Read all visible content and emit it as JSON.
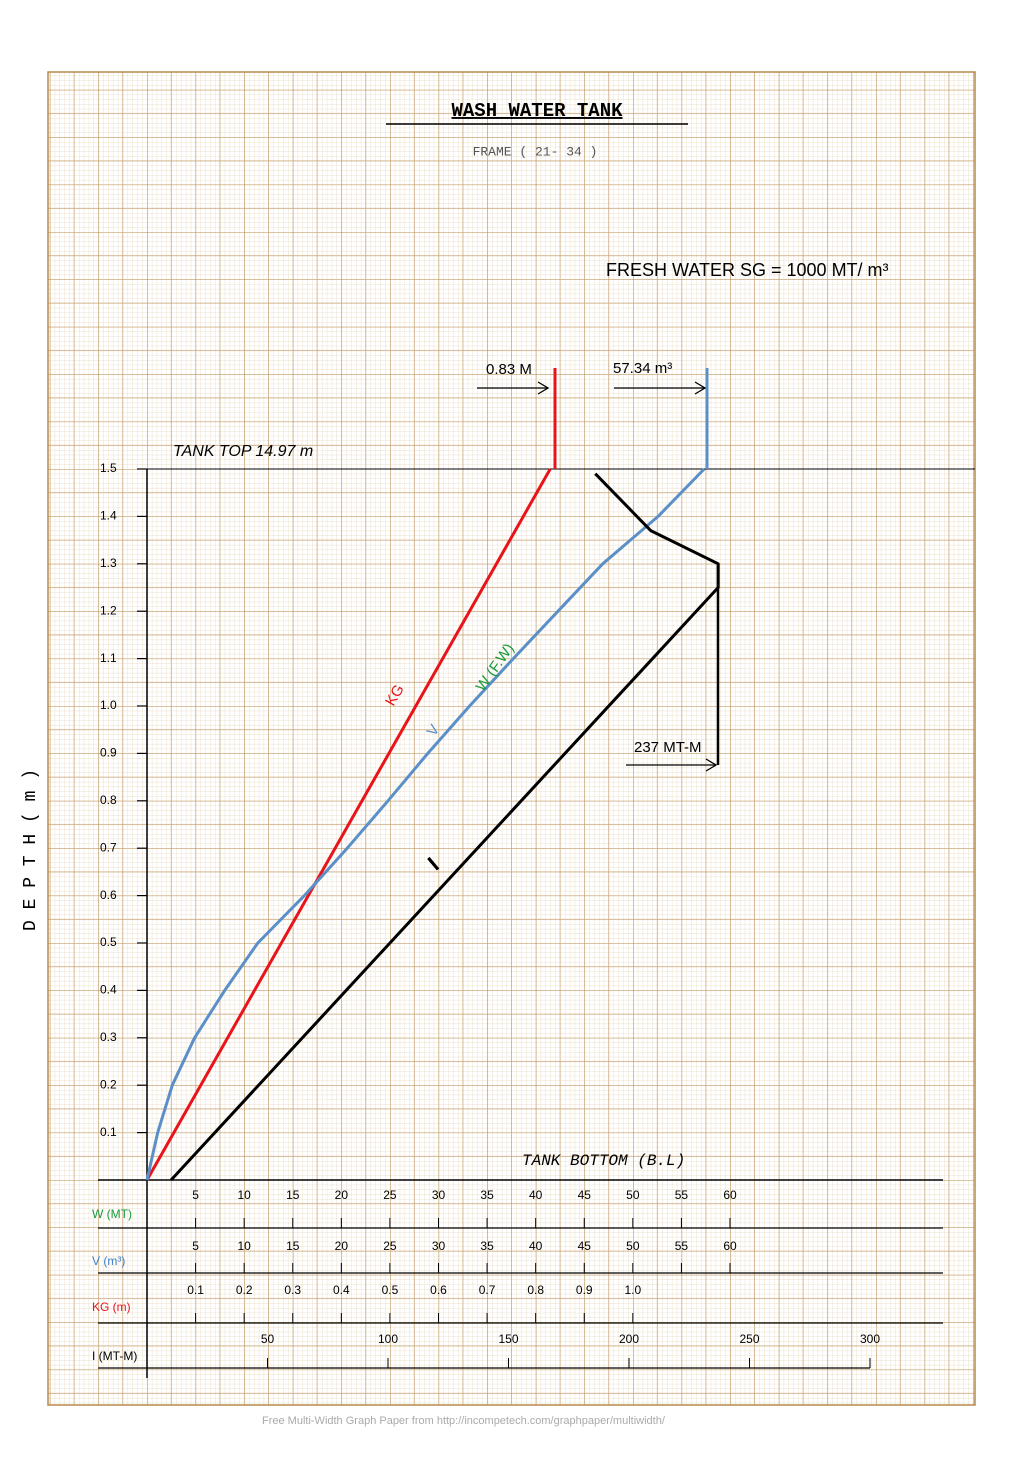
{
  "chart_data": {
    "type": "line",
    "title": "WASH    WATER    TANK",
    "subtitle": "FRAME ( 21-  34 )",
    "ylabel": "D E P T H ( m )",
    "ylim": [
      0,
      1.5
    ],
    "yticks": [
      0.1,
      0.2,
      0.3,
      0.4,
      0.5,
      0.6,
      0.7,
      0.8,
      0.9,
      {
        "value": 1,
        "label": "1.0"
      },
      1.1,
      1.2,
      1.3,
      1.4,
      1.5
    ],
    "axes": [
      {
        "name": "W (MT)",
        "color": "#1a9a3a",
        "xlim": [
          0,
          60
        ],
        "xticks": [
          5,
          10,
          15,
          20,
          25,
          30,
          35,
          40,
          45,
          50,
          55,
          60
        ]
      },
      {
        "name": "V (m³)",
        "color": "#3f7fc4",
        "xlim": [
          0,
          60
        ],
        "xticks": [
          5,
          10,
          15,
          20,
          25,
          30,
          35,
          40,
          45,
          50,
          55,
          60
        ]
      },
      {
        "name": "KG (m)",
        "color": "#e8141a",
        "xlim": [
          0,
          1.2
        ],
        "xticks": [
          0.1,
          0.2,
          0.3,
          0.4,
          0.5,
          0.6,
          0.7,
          0.8,
          0.9,
          {
            "value": 1,
            "label": "1.0"
          }
        ]
      },
      {
        "name": "I (MT-M)",
        "color": "#000000",
        "xlim": [
          0,
          300
        ],
        "xticks": [
          50,
          100,
          150,
          200,
          250,
          300
        ]
      }
    ],
    "series": [
      {
        "name": "KG",
        "color": "#e8141a",
        "axis": 2,
        "depth": [
          0,
          1.5
        ],
        "values": [
          0,
          0.83
        ]
      },
      {
        "name": "V",
        "color": "#5b8fc7",
        "axis": 1,
        "alias": "W (F.W)",
        "alias_color": "#1a9a3a",
        "depth": [
          0,
          0.1,
          0.2,
          0.3,
          0.4,
          0.5,
          0.6,
          0.7,
          0.8,
          0.9,
          1.0,
          1.1,
          1.2,
          1.3,
          1.4,
          1.5
        ],
        "values": [
          0,
          1.1,
          2.6,
          4.9,
          8.0,
          11.4,
          16.2,
          20.6,
          24.8,
          28.9,
          33.2,
          37.7,
          42.3,
          46.9,
          52.6,
          57.34
        ]
      },
      {
        "name": "I",
        "color": "#000000",
        "axis": 3,
        "depth": [
          0,
          1.25,
          1.3,
          1.37,
          1.49
        ],
        "values": [
          10,
          237,
          237,
          209,
          186
        ]
      }
    ],
    "annotations": [
      "TANK   TOP   14.97  m",
      "TANK    BOTTOM     (B.L)",
      "0.83 M",
      "57.34 m³",
      "237 MT-M",
      "FRESH WATER SG = 1000  MT/ m³"
    ]
  },
  "footer": "Free Multi-Width Graph Paper from http://incompetech.com/graphpaper/multiwidth/"
}
